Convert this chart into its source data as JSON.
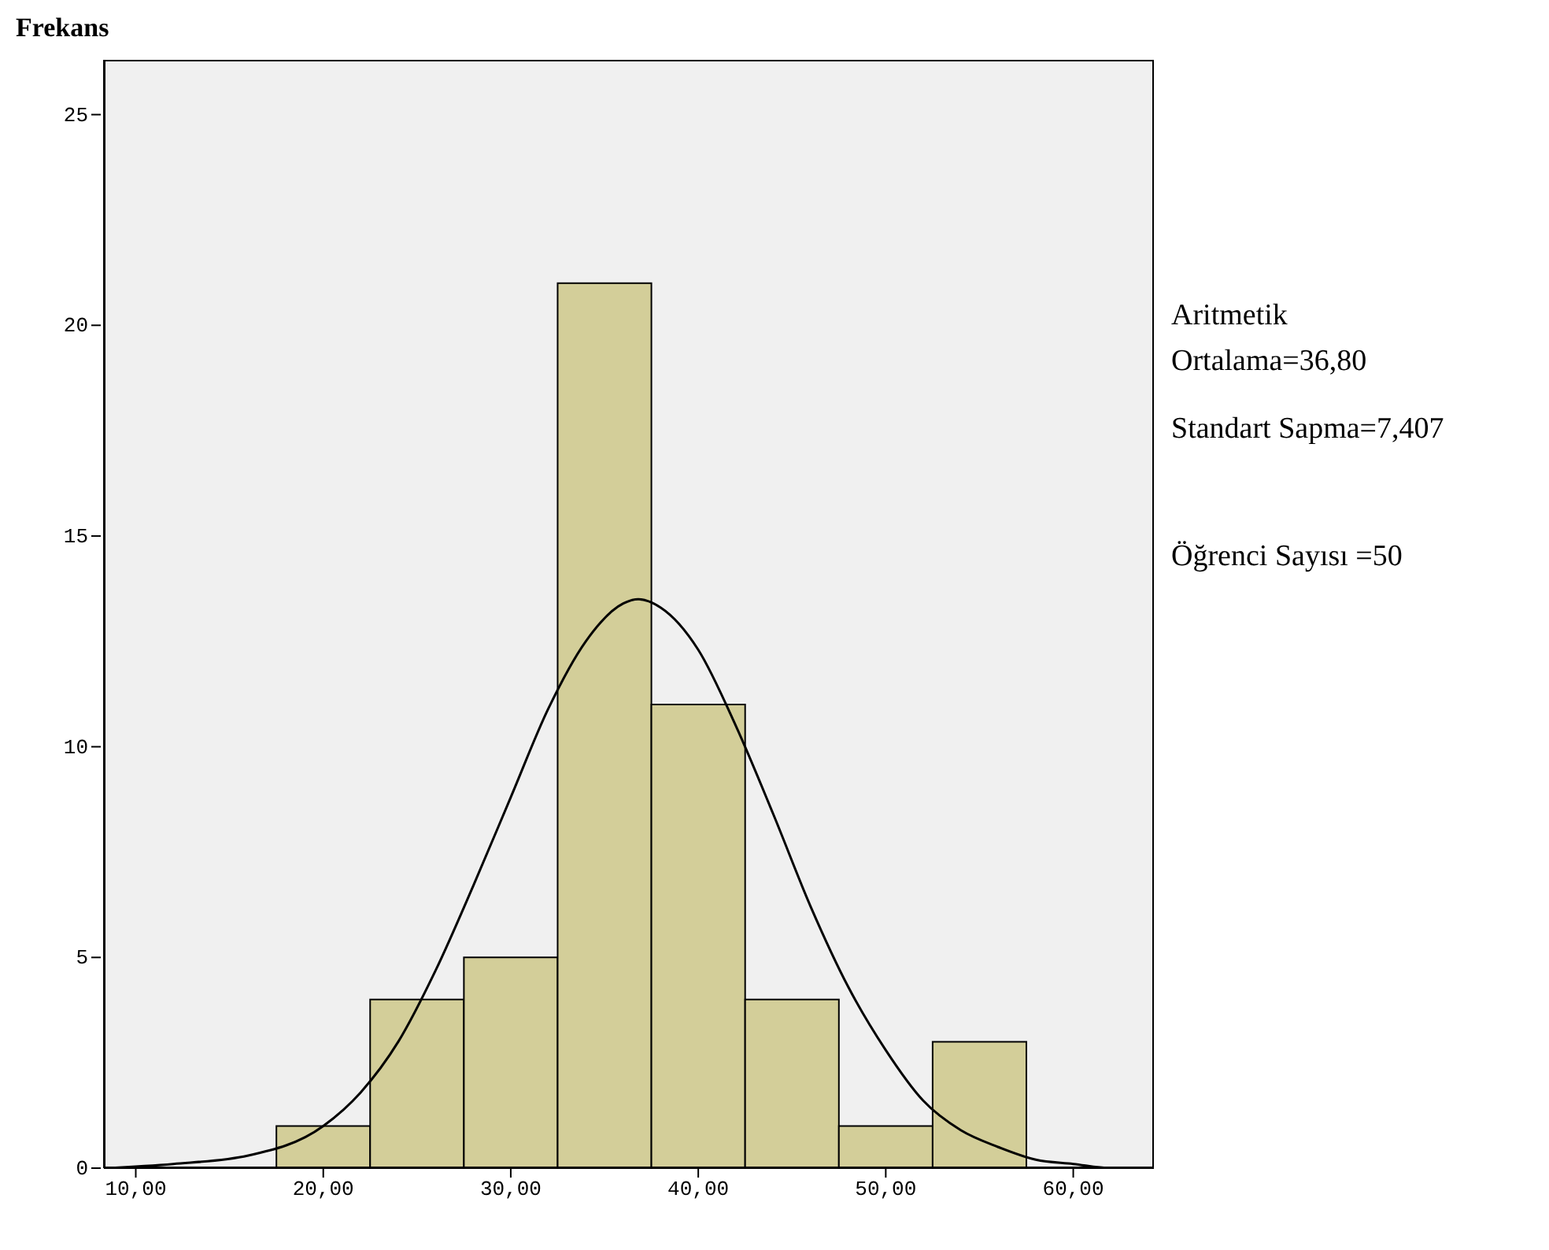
{
  "chart_data": {
    "type": "histogram",
    "ylabel": "Frekans",
    "xlim": [
      8.3,
      64.3
    ],
    "xticks": [
      {
        "value": 10,
        "label": "10,00"
      },
      {
        "value": 20,
        "label": "20,00"
      },
      {
        "value": 30,
        "label": "30,00"
      },
      {
        "value": 40,
        "label": "40,00"
      },
      {
        "value": 50,
        "label": "50,00"
      },
      {
        "value": 60,
        "label": "60,00"
      }
    ],
    "ylim": [
      0,
      26.3
    ],
    "yticks": [
      0,
      5,
      10,
      15,
      20,
      25
    ],
    "series": [
      {
        "type": "histogram",
        "color": "#d3ce99",
        "bins": [
          17.5,
          22.5,
          27.5,
          32.5,
          37.5,
          42.5,
          47.5,
          52.5,
          57.5
        ],
        "values": [
          1,
          4,
          5,
          21,
          11,
          4,
          1,
          3
        ]
      },
      {
        "type": "line",
        "color": "#000000",
        "x": [
          8.3,
          12,
          16,
          20,
          22,
          24,
          26,
          28,
          30,
          32,
          34,
          36,
          36.8,
          38,
          40,
          42,
          44,
          46,
          48,
          50,
          52,
          54,
          56,
          58,
          60,
          62,
          64.3
        ],
        "values": [
          0,
          0.1,
          0.3,
          1,
          1.8,
          3,
          4.7,
          6.7,
          8.8,
          10.9,
          12.5,
          13.4,
          13.5,
          13.3,
          12.3,
          10.5,
          8.4,
          6.2,
          4.3,
          2.8,
          1.6,
          0.9,
          0.5,
          0.2,
          0.1,
          0,
          0
        ]
      }
    ],
    "annotations": [
      "Aritmetik\nOrtalama=36,80",
      "Standart Sapma=7,407",
      "Öğrenci Sayısı =50"
    ]
  }
}
